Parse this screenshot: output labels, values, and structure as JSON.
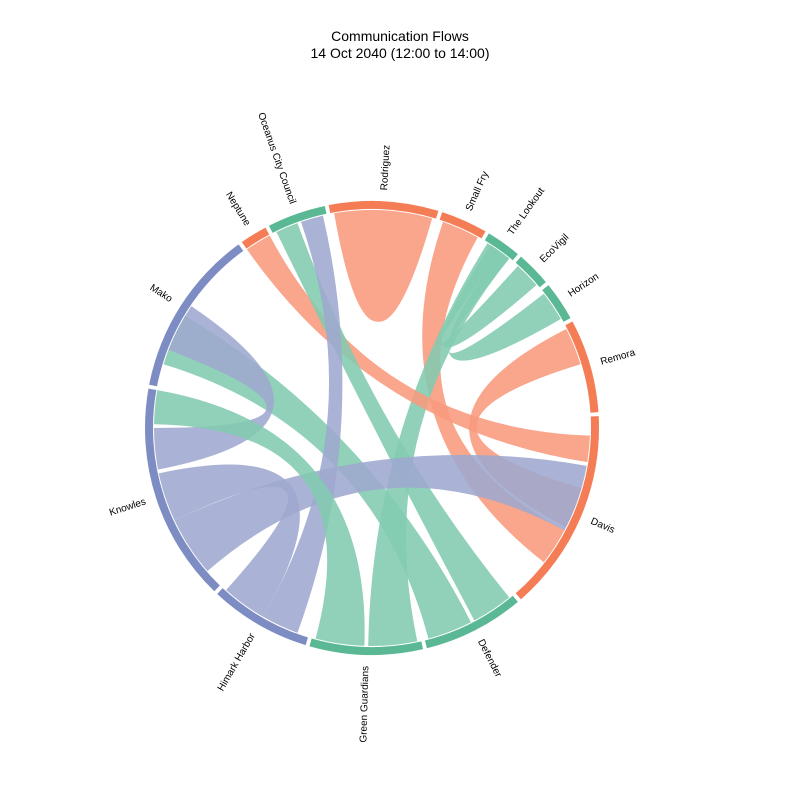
{
  "title": "Communication Flows",
  "subtitle": "14 Oct 2040 (12:00 to 14:00)",
  "colors": {
    "orange": "#f47d56",
    "green": "#5ab994",
    "blue": "#7d8dc3",
    "chord_orange": "#f89a7c",
    "chord_green": "#82cbb0",
    "chord_blue": "#9ea9cf"
  },
  "nodes": [
    {
      "id": "rodriguez",
      "label": "Rodriguez",
      "group": "orange"
    },
    {
      "id": "smallfry",
      "label": "Small Fry",
      "group": "orange"
    },
    {
      "id": "lookout",
      "label": "The Lookout",
      "group": "green"
    },
    {
      "id": "ecovigil",
      "label": "EcoVigil",
      "group": "green"
    },
    {
      "id": "horizon",
      "label": "Horizon",
      "group": "green"
    },
    {
      "id": "remora",
      "label": "Remora",
      "group": "orange"
    },
    {
      "id": "davis",
      "label": "Davis",
      "group": "orange"
    },
    {
      "id": "defender",
      "label": "Defender",
      "group": "green"
    },
    {
      "id": "greenguardians",
      "label": "Green Guardians",
      "group": "green"
    },
    {
      "id": "himark",
      "label": "Himark Harbor",
      "group": "blue"
    },
    {
      "id": "knowles",
      "label": "Knowles",
      "group": "blue"
    },
    {
      "id": "mako",
      "label": "Mako",
      "group": "blue"
    },
    {
      "id": "neptune",
      "label": "Neptune",
      "group": "orange"
    },
    {
      "id": "oceanus",
      "label": "Oceanus City Council",
      "group": "green"
    }
  ],
  "chords": [
    {
      "source": "rodriguez",
      "target": "rodriguez",
      "color": "orange"
    },
    {
      "source": "smallfry",
      "target": "davis",
      "color": "orange"
    },
    {
      "source": "lookout",
      "target": "greenguardians",
      "color": "green"
    },
    {
      "source": "ecovigil",
      "target": "lookout",
      "color": "green"
    },
    {
      "source": "horizon",
      "target": "lookout",
      "color": "green"
    },
    {
      "source": "remora",
      "target": "davis",
      "color": "orange"
    },
    {
      "source": "neptune",
      "target": "davis",
      "color": "orange"
    },
    {
      "source": "mako",
      "target": "defender",
      "color": "green"
    },
    {
      "source": "oceanus",
      "target": "defender",
      "color": "green"
    },
    {
      "source": "oceanus",
      "target": "himark",
      "color": "blue"
    },
    {
      "source": "mako",
      "target": "knowles",
      "color": "blue"
    },
    {
      "source": "knowles",
      "target": "davis",
      "color": "blue"
    },
    {
      "source": "knowles",
      "target": "himark",
      "color": "blue"
    },
    {
      "source": "greenguardians",
      "target": "knowles",
      "color": "green"
    }
  ]
}
